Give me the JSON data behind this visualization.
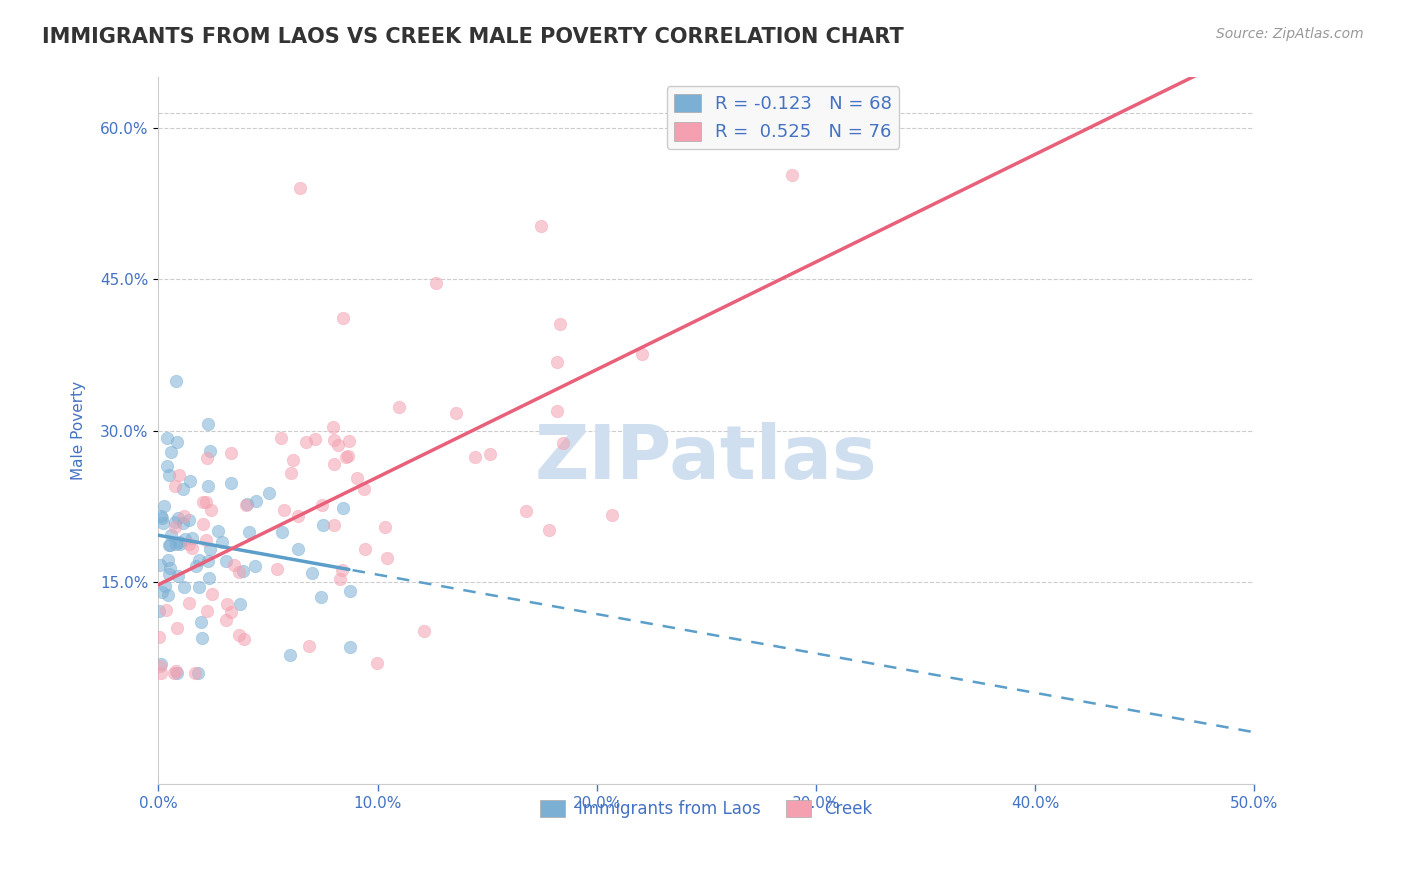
{
  "title": "IMMIGRANTS FROM LAOS VS CREEK MALE POVERTY CORRELATION CHART",
  "source": "Source: ZipAtlas.com",
  "xlabel_blue": "Immigrants from Laos",
  "xlabel_pink": "Creek",
  "ylabel": "Male Poverty",
  "xlim": [
    0.0,
    0.5
  ],
  "ylim": [
    -0.05,
    0.65
  ],
  "xtick_labels": [
    "0.0%",
    "10.0%",
    "20.0%",
    "30.0%",
    "40.0%",
    "50.0%"
  ],
  "xtick_vals": [
    0.0,
    0.1,
    0.2,
    0.3,
    0.4,
    0.5
  ],
  "ytick_labels_right": [
    "15.0%",
    "30.0%",
    "45.0%",
    "60.0%"
  ],
  "ytick_vals_right": [
    0.15,
    0.3,
    0.45,
    0.6
  ],
  "R_blue": -0.123,
  "N_blue": 68,
  "R_pink": 0.525,
  "N_pink": 76,
  "blue_color": "#7bafd4",
  "pink_color": "#f4a0b0",
  "blue_line_color": "#5a9ec9",
  "pink_line_color": "#e8607a",
  "title_color": "#333333",
  "axis_label_color": "#4472c4",
  "legend_R_color": "#4472c4",
  "grid_color": "#cccccc",
  "watermark_color": "#d0dff0",
  "background_color": "#ffffff",
  "seed": 42,
  "legend1_label_blue": "R = -0.123   N = 68",
  "legend1_label_pink": "R =  0.525   N = 76"
}
